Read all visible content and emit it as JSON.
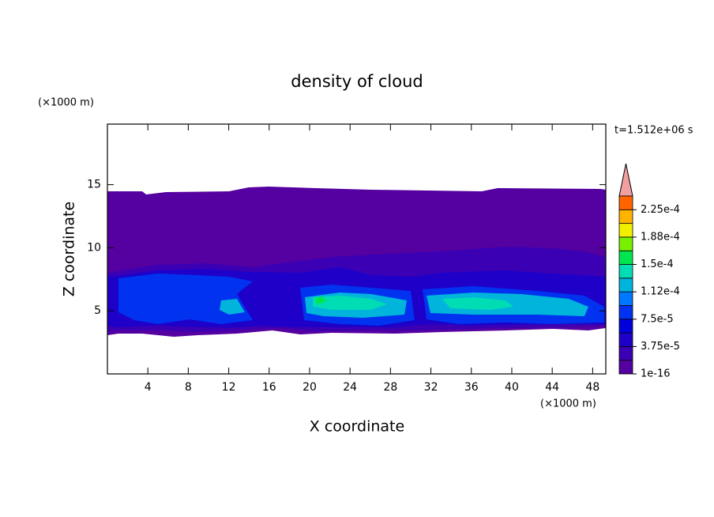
{
  "chart_data": {
    "type": "contour",
    "title": "density of cloud",
    "x_label": "X coordinate",
    "y_label": "Z coordinate",
    "x_unit": "(×1000 m)",
    "y_unit": "(×1000 m)",
    "time_label": "t=1.512e+06 s",
    "xlim": [
      0,
      49.3
    ],
    "ylim": [
      0,
      19.8
    ],
    "xticks": [
      4,
      8,
      12,
      16,
      20,
      24,
      28,
      32,
      36,
      40,
      44,
      48
    ],
    "yticks": [
      5,
      10,
      15
    ],
    "levels": [
      1e-16,
      1.875e-05,
      3.75e-05,
      5.625e-05,
      7.5e-05,
      9.375e-05,
      0.0001125,
      0.00013125,
      0.00015,
      0.00016875,
      0.0001875,
      0.00020625,
      0.000225
    ],
    "clim": [
      1e-16,
      0.00024375
    ],
    "colors": [
      "#5500a0",
      "#3c00b4",
      "#1e00c8",
      "#0000dc",
      "#0032f0",
      "#0078ff",
      "#00b4dc",
      "#00dcb4",
      "#00e650",
      "#78f000",
      "#f0f000",
      "#ffb400",
      "#ff6400"
    ],
    "extend_color": "#f0a0a0",
    "cticks": [
      {
        "value": 1e-16,
        "label": "1e-16"
      },
      {
        "value": 3.75e-05,
        "label": "3.75e-5"
      },
      {
        "value": 7.5e-05,
        "label": "7.5e-5"
      },
      {
        "value": 0.0001125,
        "label": "1.12e-4"
      },
      {
        "value": 0.00015,
        "label": "1.5e-4"
      },
      {
        "value": 0.0001875,
        "label": "1.88e-4"
      },
      {
        "value": 0.000225,
        "label": "2.25e-4"
      }
    ]
  }
}
